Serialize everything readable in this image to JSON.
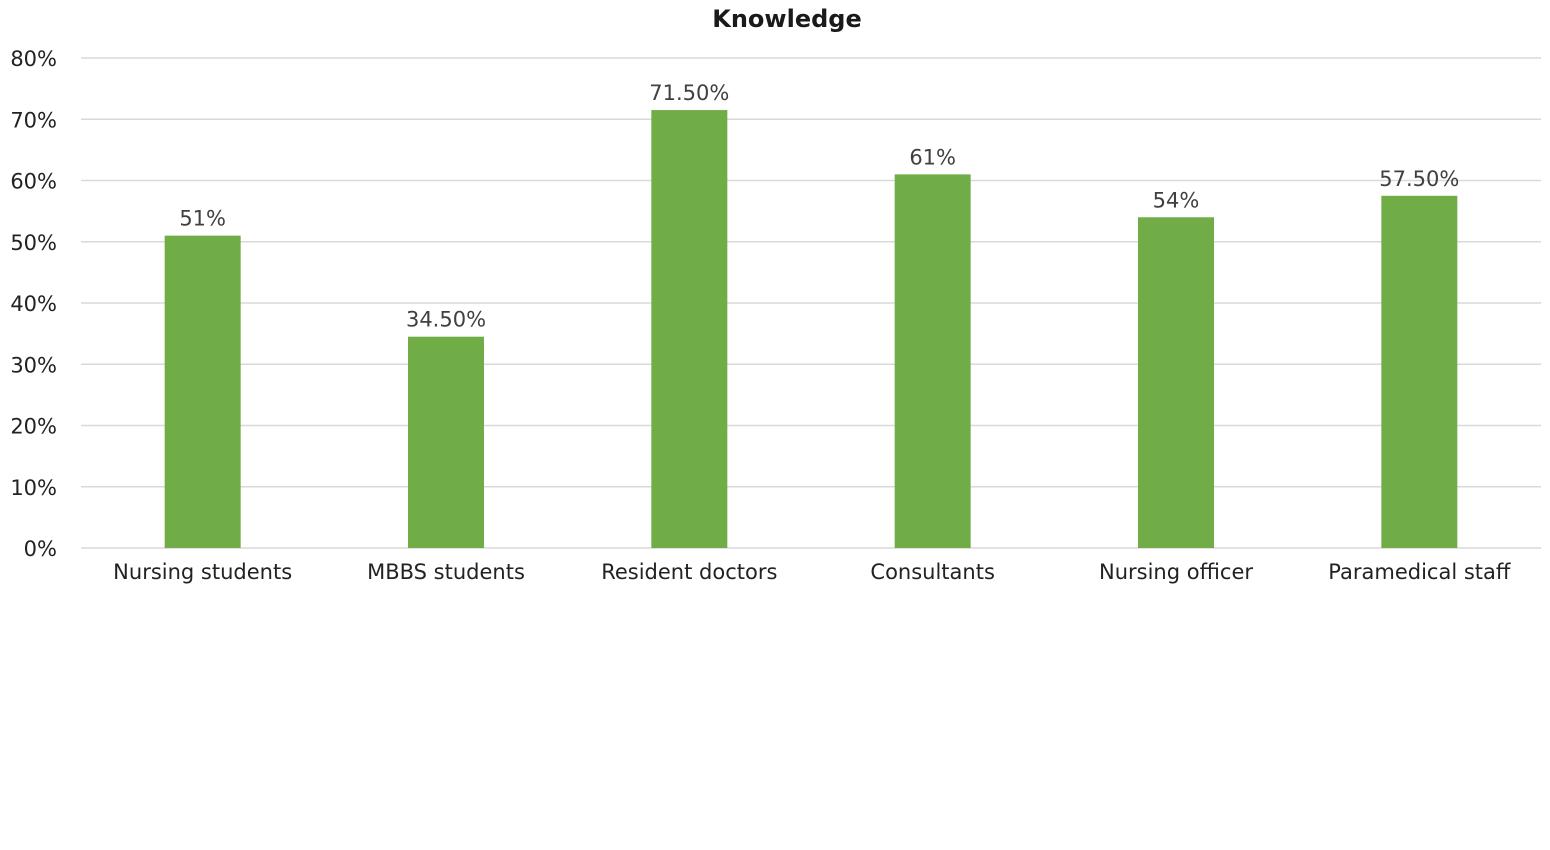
{
  "chart_data": {
    "type": "bar",
    "title": "Knowledge",
    "xlabel": "",
    "ylabel": "",
    "categories": [
      "Nursing students",
      "MBBS students",
      "Resident doctors",
      "Consultants",
      "Nursing officer",
      "Paramedical staff"
    ],
    "values": [
      51,
      34.5,
      71.5,
      61,
      54,
      57.5
    ],
    "data_labels": [
      "51%",
      "34.50%",
      "71.50%",
      "61%",
      "54%",
      "57.50%"
    ],
    "ylim": [
      0,
      80
    ],
    "yticks": [
      0,
      10,
      20,
      30,
      40,
      50,
      60,
      70,
      80
    ],
    "ytick_labels": [
      "0%",
      "10%",
      "20%",
      "30%",
      "40%",
      "50%",
      "60%",
      "70%",
      "80%"
    ],
    "grid": true,
    "legend": "none",
    "bar_color": "#70ad47"
  }
}
